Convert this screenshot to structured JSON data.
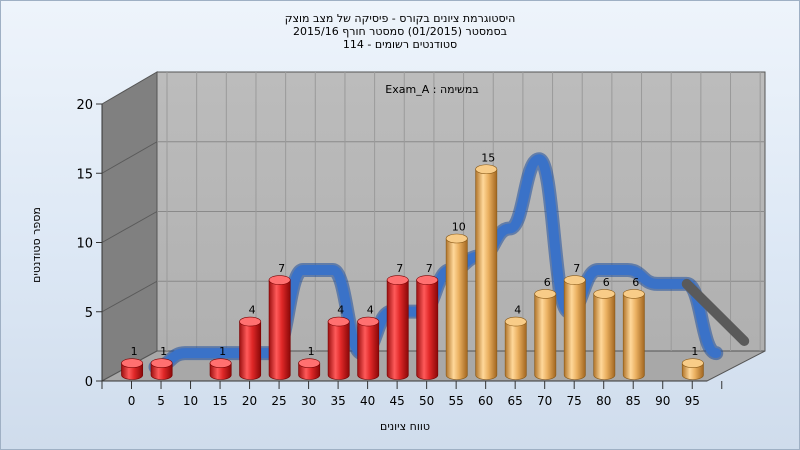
{
  "chart_data": {
    "type": "bar",
    "title_lines": [
      "היסטוגרמת ציונים בקורס - פיסיקה של מצב מוצק",
      "בסמסטר  (01/2015)  סמסטר חורף 2015/16",
      "סטודנטים רשומים - 114"
    ],
    "annotation": "Exam_A : במשימה",
    "xlabel": "טווח ציונים",
    "ylabel": "מספר סטודנטים",
    "ylim": [
      0,
      20
    ],
    "yticks": [
      0,
      5,
      10,
      15,
      20
    ],
    "xticks": [
      "0",
      "5",
      "10",
      "15",
      "20",
      "25",
      "30",
      "35",
      "40",
      "45",
      "50",
      "55",
      "60",
      "65",
      "70",
      "75",
      "80",
      "85",
      "90",
      "95"
    ],
    "bins": [
      0,
      5,
      10,
      15,
      20,
      25,
      30,
      35,
      40,
      45,
      50,
      55,
      60,
      65,
      70,
      75,
      80,
      85,
      90,
      95
    ],
    "values": [
      1,
      1,
      0,
      1,
      4,
      7,
      1,
      4,
      4,
      7,
      7,
      10,
      15,
      4,
      6,
      7,
      6,
      6,
      0,
      1
    ],
    "data_labels": [
      "1",
      "1",
      "",
      "1",
      "4",
      "7",
      "1",
      "4",
      "4",
      "7",
      "7",
      "10",
      "15",
      "4",
      "6",
      "7",
      "6",
      "6",
      "",
      "1"
    ],
    "bar_colors": [
      "red",
      "red",
      "red",
      "red",
      "red",
      "red",
      "red",
      "red",
      "red",
      "red",
      "red",
      "orange",
      "orange",
      "orange",
      "orange",
      "orange",
      "orange",
      "orange",
      "orange",
      "orange"
    ],
    "trend_values": [
      0,
      1,
      1,
      1,
      1,
      7,
      7,
      1,
      4,
      4,
      7,
      8,
      10,
      15,
      4,
      7,
      7,
      6,
      6,
      1
    ],
    "colors": {
      "red_bar": "#e03030",
      "orange_bar": "#e8a850",
      "trend_line": "#3a72c8",
      "trend_line_dark": "#5a5a5a",
      "wall": "#b4b4b4",
      "side_wall": "#808080"
    },
    "grid": true,
    "legend": "none"
  }
}
